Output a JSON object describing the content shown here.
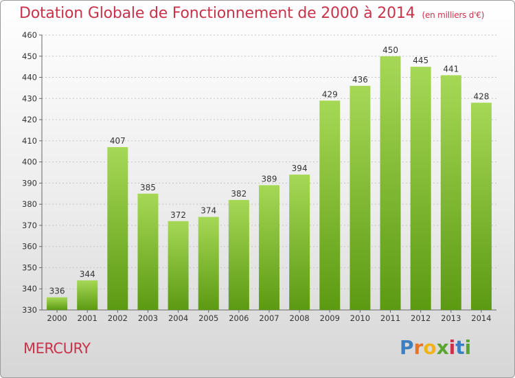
{
  "header": {
    "title": "Dotation Globale de Fonctionnement de 2000 à 2014",
    "subtitle": "(en milliers d'€)"
  },
  "footer": {
    "commune": "MERCURY",
    "logo_letters": [
      "P",
      "r",
      "o",
      "x",
      "i",
      "t",
      "i"
    ]
  },
  "colors": {
    "title": "#c8334a",
    "bar_top": "#a6d856",
    "bar_bottom": "#5c9a12",
    "logo": [
      "#3d7fc0",
      "#e8742a",
      "#f2b21b",
      "#5aa52f",
      "#c8334a",
      "#3d7fc0",
      "#5aa52f"
    ]
  },
  "chart_data": {
    "type": "bar",
    "categories": [
      "2000",
      "2001",
      "2002",
      "2003",
      "2004",
      "2005",
      "2006",
      "2007",
      "2008",
      "2009",
      "2010",
      "2011",
      "2012",
      "2013",
      "2014"
    ],
    "values": [
      336,
      344,
      407,
      385,
      372,
      374,
      382,
      389,
      394,
      429,
      436,
      450,
      445,
      441,
      428
    ],
    "title": "Dotation Globale de Fonctionnement de 2000 à 2014",
    "ylim": [
      330,
      460
    ],
    "yticks": [
      330,
      340,
      350,
      360,
      370,
      380,
      390,
      400,
      410,
      420,
      430,
      440,
      450,
      460
    ],
    "grid": true
  }
}
